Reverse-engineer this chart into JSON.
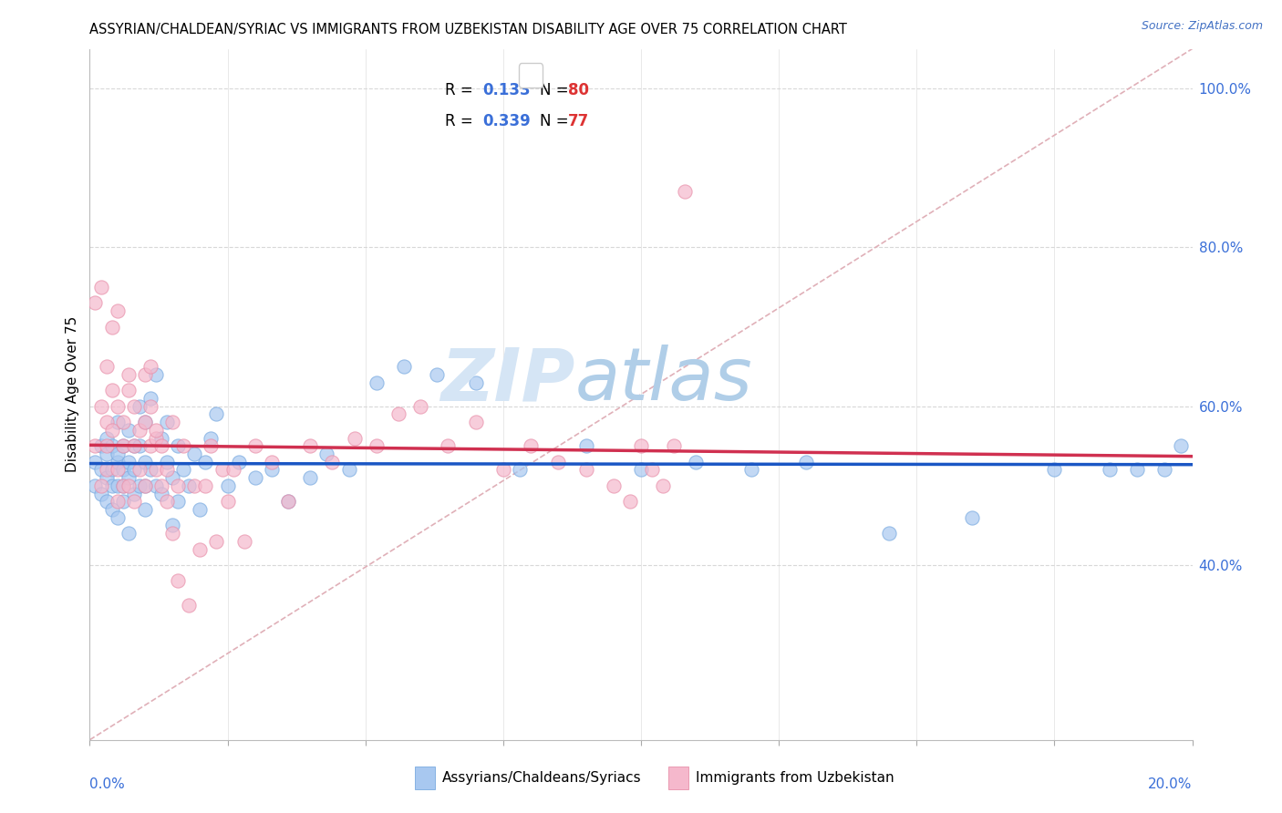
{
  "title": "ASSYRIAN/CHALDEAN/SYRIAC VS IMMIGRANTS FROM UZBEKISTAN DISABILITY AGE OVER 75 CORRELATION CHART",
  "source": "Source: ZipAtlas.com",
  "ylabel": "Disability Age Over 75",
  "blue_R": 0.133,
  "blue_N": 80,
  "pink_R": 0.339,
  "pink_N": 77,
  "blue_color": "#a8c8f0",
  "pink_color": "#f5b8cc",
  "blue_edge_color": "#7aaae0",
  "pink_edge_color": "#e890aa",
  "blue_trend_color": "#1a56c4",
  "pink_trend_color": "#d03050",
  "legend_label_blue": "Assyrians/Chaldeans/Syriacs",
  "legend_label_pink": "Immigrants from Uzbekistan",
  "x_min": 0.0,
  "x_max": 0.2,
  "y_min": 0.18,
  "y_max": 1.05,
  "ref_line_color": "#e0b0b8",
  "grid_color": "#d8d8d8",
  "right_tick_color": "#3a6fd8",
  "watermark_zip_color": "#d5e5f5",
  "watermark_atlas_color": "#b0cee8",
  "blue_scatter_x": [
    0.001,
    0.001,
    0.002,
    0.002,
    0.002,
    0.003,
    0.003,
    0.003,
    0.003,
    0.004,
    0.004,
    0.004,
    0.004,
    0.005,
    0.005,
    0.005,
    0.005,
    0.005,
    0.006,
    0.006,
    0.006,
    0.006,
    0.007,
    0.007,
    0.007,
    0.007,
    0.008,
    0.008,
    0.008,
    0.009,
    0.009,
    0.009,
    0.01,
    0.01,
    0.01,
    0.01,
    0.011,
    0.011,
    0.012,
    0.012,
    0.013,
    0.013,
    0.014,
    0.014,
    0.015,
    0.015,
    0.016,
    0.016,
    0.017,
    0.018,
    0.019,
    0.02,
    0.021,
    0.022,
    0.023,
    0.025,
    0.027,
    0.03,
    0.033,
    0.036,
    0.04,
    0.043,
    0.047,
    0.052,
    0.057,
    0.063,
    0.07,
    0.078,
    0.09,
    0.1,
    0.11,
    0.12,
    0.13,
    0.145,
    0.16,
    0.175,
    0.185,
    0.19,
    0.195,
    0.198
  ],
  "blue_scatter_y": [
    0.5,
    0.53,
    0.55,
    0.49,
    0.52,
    0.51,
    0.54,
    0.48,
    0.56,
    0.5,
    0.55,
    0.52,
    0.47,
    0.53,
    0.58,
    0.5,
    0.46,
    0.54,
    0.55,
    0.5,
    0.52,
    0.48,
    0.57,
    0.51,
    0.44,
    0.53,
    0.52,
    0.49,
    0.55,
    0.6,
    0.55,
    0.5,
    0.58,
    0.53,
    0.5,
    0.47,
    0.61,
    0.52,
    0.64,
    0.5,
    0.56,
    0.49,
    0.58,
    0.53,
    0.51,
    0.45,
    0.55,
    0.48,
    0.52,
    0.5,
    0.54,
    0.47,
    0.53,
    0.56,
    0.59,
    0.5,
    0.53,
    0.51,
    0.52,
    0.48,
    0.51,
    0.54,
    0.52,
    0.63,
    0.65,
    0.64,
    0.63,
    0.52,
    0.55,
    0.52,
    0.53,
    0.52,
    0.53,
    0.44,
    0.46,
    0.52,
    0.52,
    0.52,
    0.52,
    0.55
  ],
  "pink_scatter_x": [
    0.001,
    0.001,
    0.002,
    0.002,
    0.002,
    0.003,
    0.003,
    0.003,
    0.003,
    0.004,
    0.004,
    0.004,
    0.005,
    0.005,
    0.005,
    0.005,
    0.006,
    0.006,
    0.006,
    0.007,
    0.007,
    0.007,
    0.008,
    0.008,
    0.008,
    0.009,
    0.009,
    0.01,
    0.01,
    0.01,
    0.011,
    0.011,
    0.011,
    0.012,
    0.012,
    0.012,
    0.013,
    0.013,
    0.014,
    0.014,
    0.015,
    0.015,
    0.016,
    0.016,
    0.017,
    0.018,
    0.019,
    0.02,
    0.021,
    0.022,
    0.023,
    0.024,
    0.025,
    0.026,
    0.028,
    0.03,
    0.033,
    0.036,
    0.04,
    0.044,
    0.048,
    0.052,
    0.056,
    0.06,
    0.065,
    0.07,
    0.075,
    0.08,
    0.085,
    0.09,
    0.095,
    0.098,
    0.1,
    0.102,
    0.104,
    0.106,
    0.108
  ],
  "pink_scatter_y": [
    0.55,
    0.73,
    0.5,
    0.6,
    0.75,
    0.58,
    0.65,
    0.52,
    0.55,
    0.7,
    0.62,
    0.57,
    0.52,
    0.48,
    0.6,
    0.72,
    0.55,
    0.5,
    0.58,
    0.62,
    0.64,
    0.5,
    0.55,
    0.6,
    0.48,
    0.57,
    0.52,
    0.64,
    0.58,
    0.5,
    0.55,
    0.6,
    0.65,
    0.56,
    0.52,
    0.57,
    0.5,
    0.55,
    0.48,
    0.52,
    0.58,
    0.44,
    0.5,
    0.38,
    0.55,
    0.35,
    0.5,
    0.42,
    0.5,
    0.55,
    0.43,
    0.52,
    0.48,
    0.52,
    0.43,
    0.55,
    0.53,
    0.48,
    0.55,
    0.53,
    0.56,
    0.55,
    0.59,
    0.6,
    0.55,
    0.58,
    0.52,
    0.55,
    0.53,
    0.52,
    0.5,
    0.48,
    0.55,
    0.52,
    0.5,
    0.55,
    0.87
  ]
}
